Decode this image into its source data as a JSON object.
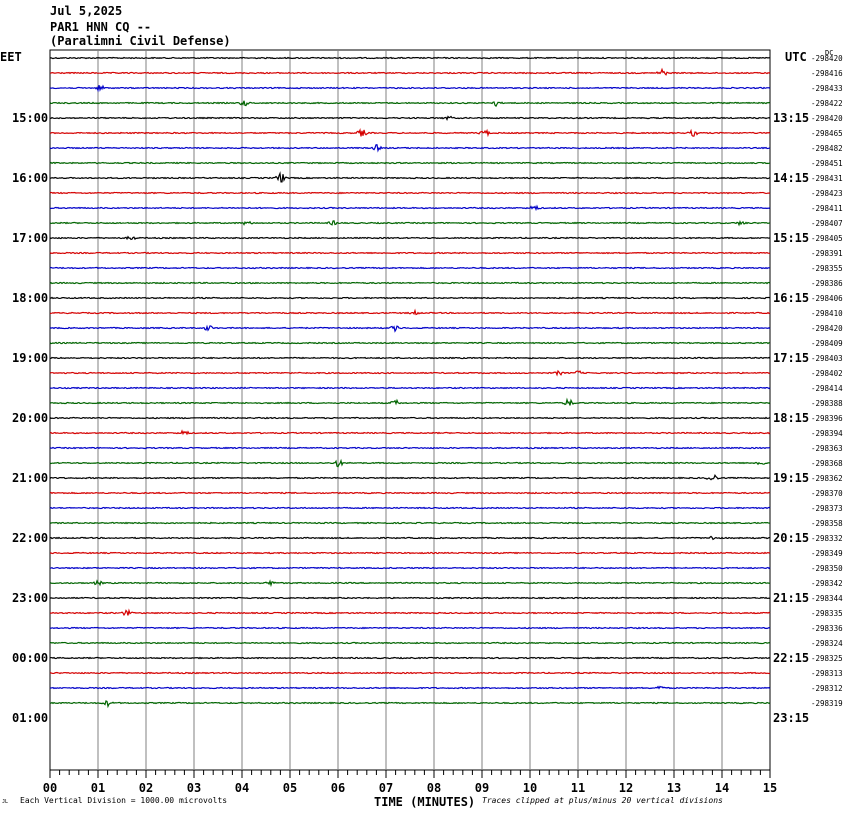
{
  "header": {
    "date": "Jul 5,2025",
    "station": "PAR1 HNN CQ --",
    "location": "(Paralimni Civil Defense)"
  },
  "left_tz": "EET",
  "right_tz": "UTC",
  "corner_mark": "DC",
  "footer": {
    "left_mark": "JL",
    "scale_note": "Each Vertical Division = 1000.00 microvolts",
    "xlabel": "TIME (MINUTES)",
    "clip_note": "Traces clipped at plus/minus 20 vertical divisions"
  },
  "colors": {
    "trace_cycle": [
      "#000000",
      "#d40000",
      "#0000c8",
      "#006400"
    ],
    "grid": "#808080"
  },
  "chart_data": {
    "type": "line",
    "subtype": "helicorder",
    "x_range": [
      0,
      15
    ],
    "x_ticks": [
      "00",
      "01",
      "02",
      "03",
      "04",
      "05",
      "06",
      "07",
      "08",
      "09",
      "10",
      "11",
      "12",
      "13",
      "14",
      "15"
    ],
    "xlabel": "TIME (MINUTES)",
    "rows_per_hour": 4,
    "minutes_per_row": 15,
    "left_time_labels": [
      "15:00",
      "16:00",
      "17:00",
      "18:00",
      "19:00",
      "20:00",
      "21:00",
      "22:00",
      "23:00",
      "00:00",
      "01:00"
    ],
    "right_time_labels": [
      "13:15",
      "14:15",
      "15:15",
      "16:15",
      "17:15",
      "18:15",
      "19:15",
      "20:15",
      "21:15",
      "22:15",
      "23:15"
    ],
    "trace_offsets": [
      "-298420",
      "-298416",
      "-298433",
      "-298422",
      "-298420",
      "-298465",
      "-298482",
      "-298451",
      "-298431",
      "-298423",
      "-298411",
      "-298407",
      "-298405",
      "-298391",
      "-298355",
      "-298386",
      "-298406",
      "-298410",
      "-298420",
      "-298409",
      "-298403",
      "-298402",
      "-298414",
      "-298388",
      "-298396",
      "-298394",
      "-298363",
      "-298368",
      "-298362",
      "-298370",
      "-298373",
      "-298358",
      "-298332",
      "-298349",
      "-298350",
      "-298342",
      "-298344",
      "-298335",
      "-298336",
      "-298324",
      "-298325",
      "-298313",
      "-298312",
      "-298319"
    ],
    "events": [
      {
        "row": 1,
        "minute": 12.75,
        "amp": 4
      },
      {
        "row": 2,
        "minute": 1.05,
        "amp": 3
      },
      {
        "row": 3,
        "minute": 4.05,
        "amp": 3
      },
      {
        "row": 3,
        "minute": 9.3,
        "amp": 3
      },
      {
        "row": 4,
        "minute": 8.3,
        "amp": 2
      },
      {
        "row": 5,
        "minute": 6.5,
        "amp": 4
      },
      {
        "row": 5,
        "minute": 9.05,
        "amp": 4
      },
      {
        "row": 5,
        "minute": 13.4,
        "amp": 3
      },
      {
        "row": 6,
        "minute": 6.8,
        "amp": 3
      },
      {
        "row": 8,
        "minute": 4.8,
        "amp": 6
      },
      {
        "row": 10,
        "minute": 10.1,
        "amp": 3
      },
      {
        "row": 11,
        "minute": 4.1,
        "amp": 2
      },
      {
        "row": 11,
        "minute": 5.9,
        "amp": 2
      },
      {
        "row": 11,
        "minute": 14.4,
        "amp": 2
      },
      {
        "row": 12,
        "minute": 1.7,
        "amp": 2
      },
      {
        "row": 17,
        "minute": 7.6,
        "amp": 2
      },
      {
        "row": 18,
        "minute": 3.3,
        "amp": 3
      },
      {
        "row": 18,
        "minute": 7.2,
        "amp": 3
      },
      {
        "row": 21,
        "minute": 10.6,
        "amp": 2
      },
      {
        "row": 21,
        "minute": 11.0,
        "amp": 2
      },
      {
        "row": 23,
        "minute": 7.2,
        "amp": 3
      },
      {
        "row": 23,
        "minute": 10.8,
        "amp": 4
      },
      {
        "row": 25,
        "minute": 2.8,
        "amp": 3
      },
      {
        "row": 27,
        "minute": 6.0,
        "amp": 4
      },
      {
        "row": 27,
        "minute": 14.8,
        "amp": 3
      },
      {
        "row": 28,
        "minute": 13.8,
        "amp": 6
      },
      {
        "row": 32,
        "minute": 13.8,
        "amp": 2
      },
      {
        "row": 35,
        "minute": 1.0,
        "amp": 2
      },
      {
        "row": 35,
        "minute": 4.6,
        "amp": 2
      },
      {
        "row": 37,
        "minute": 1.6,
        "amp": 3
      },
      {
        "row": 42,
        "minute": 12.7,
        "amp": 2
      },
      {
        "row": 43,
        "minute": 1.2,
        "amp": 3
      }
    ]
  }
}
